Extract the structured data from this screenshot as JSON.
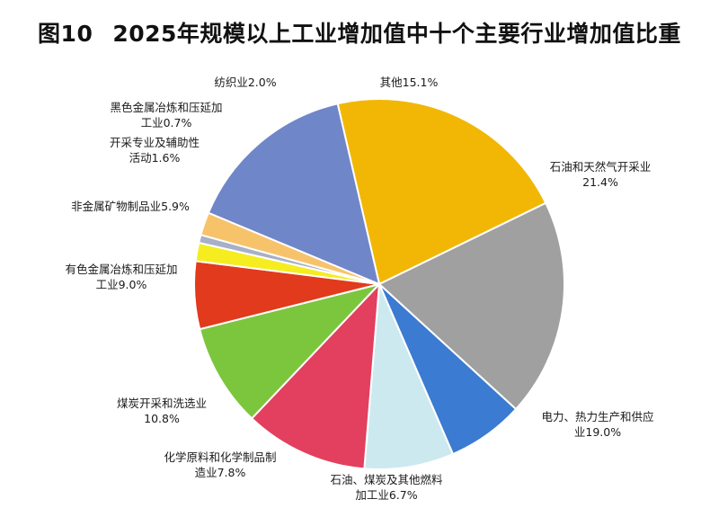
{
  "chart_data": {
    "type": "pie",
    "figure_label": "图10",
    "title": "2025年规模以上工业增加值中十个主要行业增加值比重",
    "slices": [
      {
        "name": "石油和天然气开采业",
        "value": 21.4,
        "label_lines": [
          "石油和天然气开采业",
          "21.4%"
        ],
        "color": "#f2b705"
      },
      {
        "name": "电力、热力生产和供应业",
        "value": 19.0,
        "label_lines": [
          "电力、热力生产和供应",
          "业19.0%"
        ],
        "color": "#a0a0a0"
      },
      {
        "name": "石油、煤炭及其他燃料加工业",
        "value": 6.7,
        "label_lines": [
          "石油、煤炭及其他燃料",
          "加工业6.7%"
        ],
        "color": "#3b7bd1"
      },
      {
        "name": "化学原料和化学制品制造业",
        "value": 7.8,
        "label_lines": [
          "化学原料和化学制品制",
          "造业7.8%"
        ],
        "color": "#cde9f0"
      },
      {
        "name": "煤炭开采和洗选业",
        "value": 10.8,
        "label_lines": [
          "煤炭开采和洗选业",
          "10.8%"
        ],
        "color": "#e33f5e"
      },
      {
        "name": "有色金属冶炼和压延加工业",
        "value": 9.0,
        "label_lines": [
          "有色金属冶炼和压延加",
          "工业9.0%"
        ],
        "color": "#7cc63e"
      },
      {
        "name": "非金属矿物制品业",
        "value": 5.9,
        "label_lines": [
          "非金属矿物制品业5.9%"
        ],
        "color": "#e23a1c"
      },
      {
        "name": "开采专业及辅助性活动",
        "value": 1.6,
        "label_lines": [
          "开采专业及辅助性",
          "活动1.6%"
        ],
        "color": "#f5ed20"
      },
      {
        "name": "黑色金属冶炼和压延加工业",
        "value": 0.7,
        "label_lines": [
          "黑色金属冶炼和压延加",
          "工业0.7%"
        ],
        "color": "#a7b0c8"
      },
      {
        "name": "纺织业",
        "value": 2.0,
        "label_lines": [
          "纺织业2.0%"
        ],
        "color": "#f7c36a"
      },
      {
        "name": "其他",
        "value": 15.1,
        "label_lines": [
          "其他15.1%"
        ],
        "color": "#6f86c8"
      }
    ]
  }
}
